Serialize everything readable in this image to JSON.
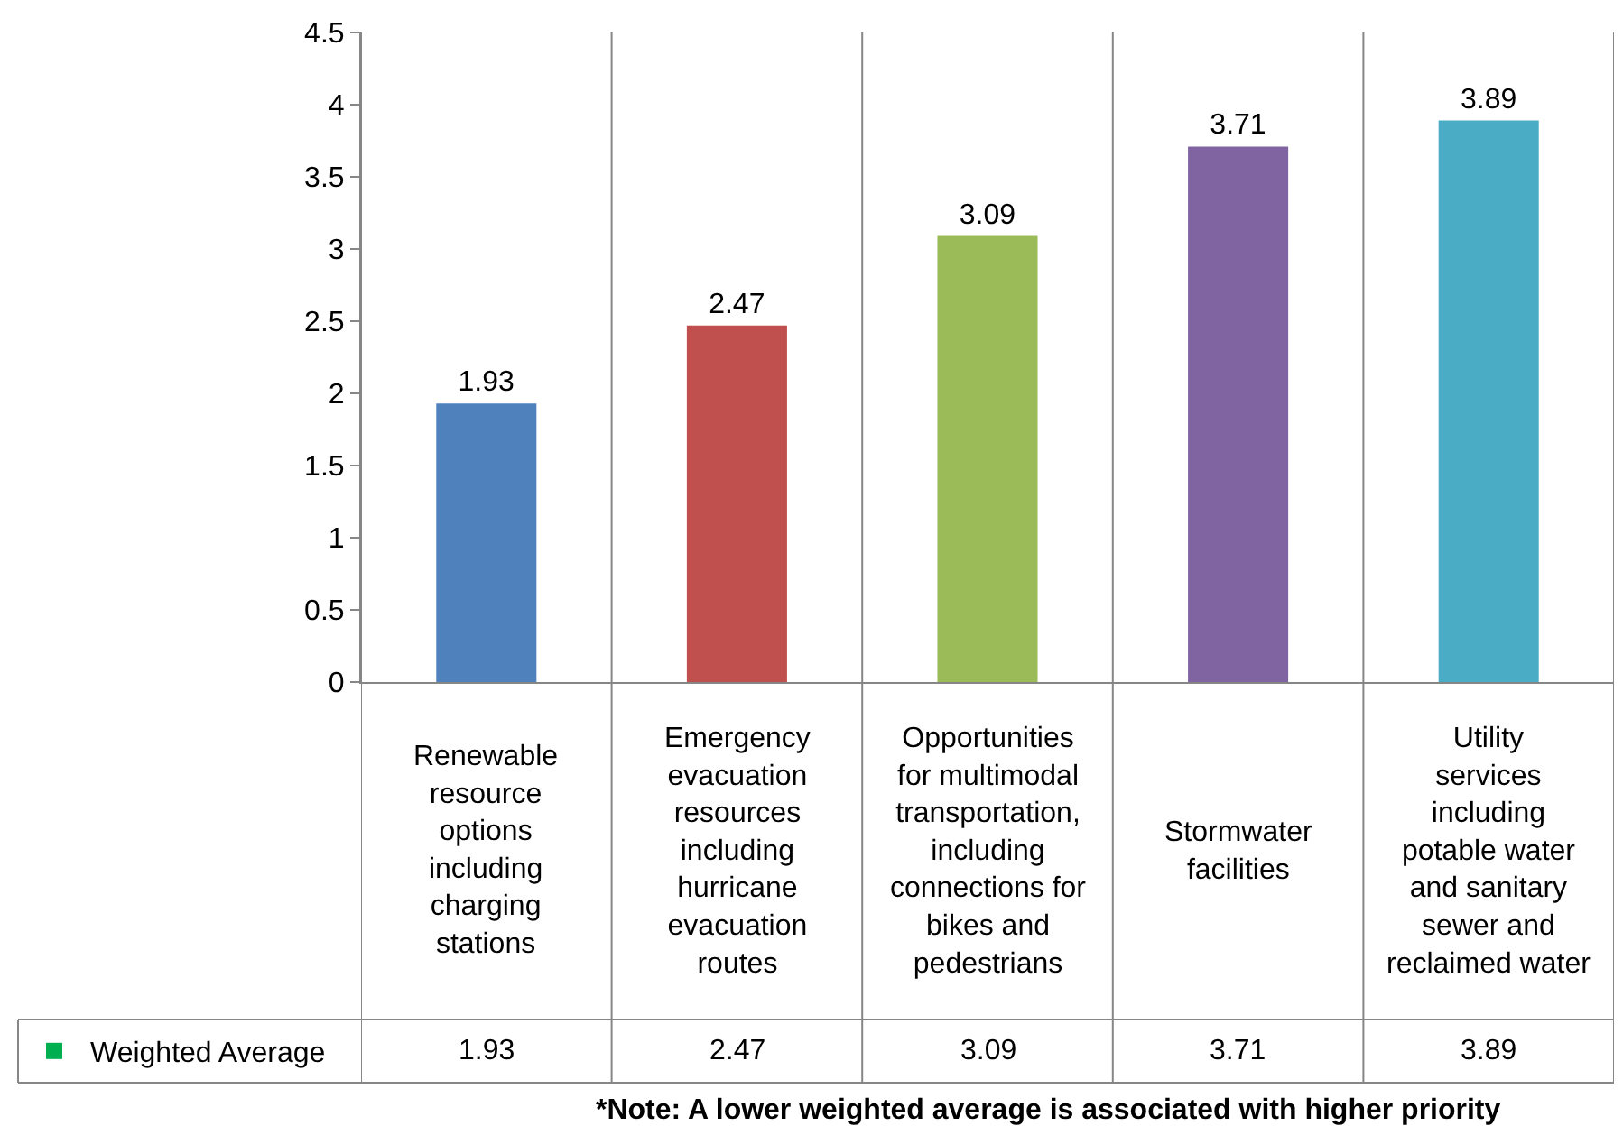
{
  "chart_data": {
    "type": "bar",
    "categories": [
      "Renewable resource options including charging stations",
      "Emergency evacuation resources including hurricane evacuation routes",
      "Opportunities for multimodal transportation, including connections for bikes and pedestrians",
      "Stormwater facilities",
      "Utility services including potable water and sanitary sewer and reclaimed water"
    ],
    "series": [
      {
        "name": "Weighted Average",
        "color": "#00b050",
        "colors": [
          "#4f81bd",
          "#c0504d",
          "#9bbb59",
          "#8064a2",
          "#4bacc6"
        ],
        "values": [
          1.93,
          2.47,
          3.09,
          3.71,
          3.89
        ],
        "value_labels": [
          "1.93",
          "2.47",
          "3.09",
          "3.71",
          "3.89"
        ]
      }
    ],
    "ylim": [
      0,
      4.5
    ],
    "yticks": [
      0,
      0.5,
      1,
      1.5,
      2,
      2.5,
      3,
      3.5,
      4,
      4.5
    ],
    "grid": "x",
    "legend": "bottom",
    "data_labels": true,
    "annotations": [
      "*Note: A lower weighted average is associated with higher priority"
    ]
  }
}
